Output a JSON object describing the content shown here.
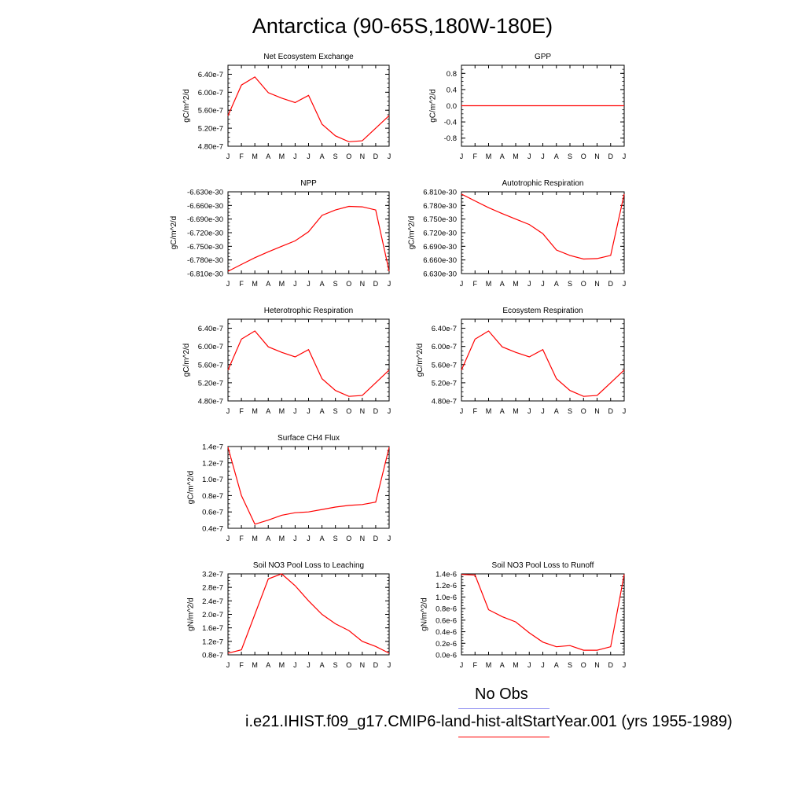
{
  "title": "Antarctica (90-65S,180W-180E)",
  "months": [
    "J",
    "F",
    "M",
    "A",
    "M",
    "J",
    "J",
    "A",
    "S",
    "O",
    "N",
    "D",
    "J"
  ],
  "legend": {
    "obs_label": "No Obs",
    "obs_color": "#8a8af0",
    "run_label": "i.e21.IHIST.f09_g17.CMIP6-land-hist-altStartYear.001 (yrs 1955-1989)",
    "run_color": "#ff0000"
  },
  "chart_data": [
    {
      "type": "line",
      "title": "Net Ecosystem Exchange",
      "ylabel": "gC/m^2/d",
      "ylim": [
        4.8e-07,
        6.6e-07
      ],
      "yticks": [
        4.8e-07,
        5.2e-07,
        5.6e-07,
        6e-07,
        6.4e-07
      ],
      "ytick_labels": [
        "4.80e-7",
        "5.20e-7",
        "5.60e-7",
        "6.00e-7",
        "6.40e-7"
      ],
      "x": [
        "J",
        "F",
        "M",
        "A",
        "M",
        "J",
        "J",
        "A",
        "S",
        "O",
        "N",
        "D",
        "J"
      ],
      "values": [
        5.48e-07,
        6.16e-07,
        6.34e-07,
        5.99e-07,
        5.87e-07,
        5.77e-07,
        5.93e-07,
        5.29e-07,
        5.03e-07,
        4.9e-07,
        4.92e-07,
        5.2e-07,
        5.48e-07
      ],
      "color": "#ff0000"
    },
    {
      "type": "line",
      "title": "GPP",
      "ylabel": "gC/m^2/d",
      "ylim": [
        -1.0,
        1.0
      ],
      "yticks": [
        -0.8,
        -0.4,
        0.0,
        0.4,
        0.8
      ],
      "ytick_labels": [
        "-0.8",
        "-0.4",
        "0.0",
        "0.4",
        "0.8"
      ],
      "x": [
        "J",
        "F",
        "M",
        "A",
        "M",
        "J",
        "J",
        "A",
        "S",
        "O",
        "N",
        "D",
        "J"
      ],
      "values": [
        0,
        0,
        0,
        0,
        0,
        0,
        0,
        0,
        0,
        0,
        0,
        0,
        0
      ],
      "color": "#ff0000"
    },
    {
      "type": "line",
      "title": "NPP",
      "ylabel": "gC/m^2/d",
      "ylim": [
        -6.81e-30,
        -6.63e-30
      ],
      "yticks": [
        -6.81e-30,
        -6.78e-30,
        -6.75e-30,
        -6.72e-30,
        -6.69e-30,
        -6.66e-30,
        -6.63e-30
      ],
      "ytick_labels": [
        "-6.810e-30",
        "-6.780e-30",
        "-6.750e-30",
        "-6.720e-30",
        "-6.690e-30",
        "-6.660e-30",
        "-6.630e-30"
      ],
      "x": [
        "J",
        "F",
        "M",
        "A",
        "M",
        "J",
        "J",
        "A",
        "S",
        "O",
        "N",
        "D",
        "J"
      ],
      "values": [
        -6.805e-30,
        -6.79e-30,
        -6.775e-30,
        -6.762e-30,
        -6.75e-30,
        -6.738e-30,
        -6.718e-30,
        -6.682e-30,
        -6.67e-30,
        -6.662e-30,
        -6.663e-30,
        -6.67e-30,
        -6.805e-30
      ],
      "color": "#ff0000"
    },
    {
      "type": "line",
      "title": "Autotrophic Respiration",
      "ylabel": "gC/m^2/d",
      "ylim": [
        6.63e-30,
        6.81e-30
      ],
      "yticks": [
        6.63e-30,
        6.66e-30,
        6.69e-30,
        6.72e-30,
        6.75e-30,
        6.78e-30,
        6.81e-30
      ],
      "ytick_labels": [
        "6.630e-30",
        "6.660e-30",
        "6.690e-30",
        "6.720e-30",
        "6.750e-30",
        "6.780e-30",
        "6.810e-30"
      ],
      "x": [
        "J",
        "F",
        "M",
        "A",
        "M",
        "J",
        "J",
        "A",
        "S",
        "O",
        "N",
        "D",
        "J"
      ],
      "values": [
        6.805e-30,
        6.79e-30,
        6.775e-30,
        6.762e-30,
        6.75e-30,
        6.738e-30,
        6.718e-30,
        6.682e-30,
        6.67e-30,
        6.662e-30,
        6.663e-30,
        6.67e-30,
        6.805e-30
      ],
      "color": "#ff0000"
    },
    {
      "type": "line",
      "title": "Heterotrophic Respiration",
      "ylabel": "gC/m^2/d",
      "ylim": [
        4.8e-07,
        6.6e-07
      ],
      "yticks": [
        4.8e-07,
        5.2e-07,
        5.6e-07,
        6e-07,
        6.4e-07
      ],
      "ytick_labels": [
        "4.80e-7",
        "5.20e-7",
        "5.60e-7",
        "6.00e-7",
        "6.40e-7"
      ],
      "x": [
        "J",
        "F",
        "M",
        "A",
        "M",
        "J",
        "J",
        "A",
        "S",
        "O",
        "N",
        "D",
        "J"
      ],
      "values": [
        5.48e-07,
        6.16e-07,
        6.34e-07,
        5.99e-07,
        5.87e-07,
        5.77e-07,
        5.93e-07,
        5.29e-07,
        5.03e-07,
        4.9e-07,
        4.92e-07,
        5.2e-07,
        5.48e-07
      ],
      "color": "#ff0000"
    },
    {
      "type": "line",
      "title": "Ecosystem Respiration",
      "ylabel": "gC/m^2/d",
      "ylim": [
        4.8e-07,
        6.6e-07
      ],
      "yticks": [
        4.8e-07,
        5.2e-07,
        5.6e-07,
        6e-07,
        6.4e-07
      ],
      "ytick_labels": [
        "4.80e-7",
        "5.20e-7",
        "5.60e-7",
        "6.00e-7",
        "6.40e-7"
      ],
      "x": [
        "J",
        "F",
        "M",
        "A",
        "M",
        "J",
        "J",
        "A",
        "S",
        "O",
        "N",
        "D",
        "J"
      ],
      "values": [
        5.48e-07,
        6.16e-07,
        6.34e-07,
        5.99e-07,
        5.87e-07,
        5.77e-07,
        5.93e-07,
        5.29e-07,
        5.03e-07,
        4.9e-07,
        4.92e-07,
        5.2e-07,
        5.48e-07
      ],
      "color": "#ff0000"
    },
    {
      "type": "line",
      "title": "Surface CH4 Flux",
      "ylabel": "gC/m^2/d",
      "ylim": [
        4e-08,
        1.4e-07
      ],
      "yticks": [
        4e-08,
        6e-08,
        8e-08,
        1e-07,
        1.2e-07,
        1.4e-07
      ],
      "ytick_labels": [
        "0.4e-7",
        "0.6e-7",
        "0.8e-7",
        "1.0e-7",
        "1.2e-7",
        "1.4e-7"
      ],
      "x": [
        "J",
        "F",
        "M",
        "A",
        "M",
        "J",
        "J",
        "A",
        "S",
        "O",
        "N",
        "D",
        "J"
      ],
      "values": [
        1.39e-07,
        8e-08,
        4.5e-08,
        5e-08,
        5.6e-08,
        5.9e-08,
        6e-08,
        6.3e-08,
        6.6e-08,
        6.8e-08,
        6.9e-08,
        7.2e-08,
        1.39e-07
      ],
      "color": "#ff0000"
    },
    {
      "type": "line",
      "title": "Soil NO3 Pool Loss to Leaching",
      "ylabel": "gN/m^2/d",
      "ylim": [
        8e-08,
        3.2e-07
      ],
      "yticks": [
        8e-08,
        1.2e-07,
        1.6e-07,
        2e-07,
        2.4e-07,
        2.8e-07,
        3.2e-07
      ],
      "ytick_labels": [
        "0.8e-7",
        "1.2e-7",
        "1.6e-7",
        "2.0e-7",
        "2.4e-7",
        "2.8e-7",
        "3.2e-7"
      ],
      "x": [
        "J",
        "F",
        "M",
        "A",
        "M",
        "J",
        "J",
        "A",
        "S",
        "O",
        "N",
        "D",
        "J"
      ],
      "values": [
        8.5e-08,
        9.5e-08,
        2e-07,
        3.05e-07,
        3.2e-07,
        2.85e-07,
        2.4e-07,
        2e-07,
        1.72e-07,
        1.52e-07,
        1.2e-07,
        1.05e-07,
        8.5e-08
      ],
      "color": "#ff0000"
    },
    {
      "type": "line",
      "title": "Soil NO3 Pool Loss to Runoff",
      "ylabel": "gN/m^2/d",
      "ylim": [
        0.0,
        1.4e-06
      ],
      "yticks": [
        0.0,
        2e-07,
        4e-07,
        6e-07,
        8e-07,
        1e-06,
        1.2e-06,
        1.4e-06
      ],
      "ytick_labels": [
        "0.0e-6",
        "0.2e-6",
        "0.4e-6",
        "0.6e-6",
        "0.8e-6",
        "1.0e-6",
        "1.2e-6",
        "1.4e-6"
      ],
      "x": [
        "J",
        "F",
        "M",
        "A",
        "M",
        "J",
        "J",
        "A",
        "S",
        "O",
        "N",
        "D",
        "J"
      ],
      "values": [
        1.39e-06,
        1.38e-06,
        7.8e-07,
        6.6e-07,
        5.7e-07,
        3.8e-07,
        2.2e-07,
        1.4e-07,
        1.6e-07,
        8e-08,
        8e-08,
        1.4e-07,
        1.39e-06
      ],
      "color": "#ff0000"
    }
  ]
}
